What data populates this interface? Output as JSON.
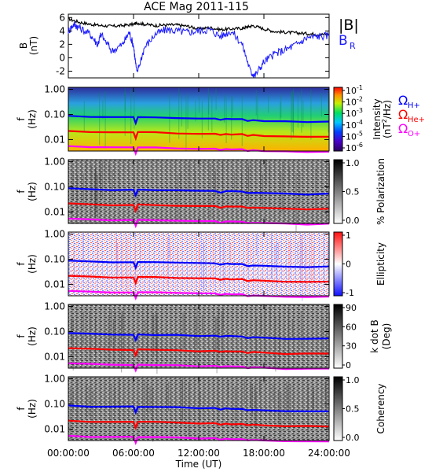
{
  "chart_data": {
    "type": "line",
    "title": "ACE Mag 2011-115",
    "xlabel": "Time (UT)",
    "x_ticks": [
      "00:00:00",
      "06:00:00",
      "12:00:00",
      "18:00:00",
      "24:00:00"
    ],
    "x_range_hours": [
      0,
      24
    ],
    "panels": [
      {
        "id": "b",
        "type": "line",
        "ylabel": "B",
        "yunit": "(nT)",
        "ylim": [
          -3,
          6.5
        ],
        "y_ticks": [
          "6",
          "4",
          "2",
          "0",
          "-2"
        ],
        "series": [
          {
            "name": "|B|",
            "color": "#000000",
            "x": [
              0,
              1,
              2,
              3,
              4,
              5,
              6,
              6.3,
              7,
              8,
              9,
              10,
              11,
              12,
              13,
              14,
              15,
              16,
              16.5,
              17,
              18,
              19,
              20,
              21,
              22,
              23,
              24
            ],
            "values": [
              5.8,
              5.3,
              5.0,
              4.8,
              4.7,
              4.8,
              5.0,
              5.2,
              5.0,
              4.8,
              4.9,
              4.9,
              4.7,
              4.3,
              4.5,
              4.2,
              4.3,
              4.4,
              4.6,
              4.8,
              4.3,
              3.9,
              3.8,
              3.7,
              3.6,
              3.5,
              3.5
            ]
          },
          {
            "name": "B_R",
            "color": "#1a1aff",
            "x": [
              0,
              0.5,
              1,
              2,
              2.7,
              3,
              4,
              5,
              5.6,
              6,
              6.3,
              7,
              8,
              9,
              10,
              11,
              12,
              13,
              14,
              15,
              16,
              16.8,
              17.2,
              18,
              19,
              20,
              21,
              22,
              23,
              24
            ],
            "values": [
              4.0,
              5.0,
              4.5,
              3.5,
              2.0,
              3.5,
              1.0,
              2.0,
              3.8,
              1.8,
              -2.3,
              1.5,
              3.5,
              4.2,
              4.0,
              3.8,
              4.0,
              4.2,
              3.2,
              4.0,
              2.0,
              -2.2,
              -2.6,
              -0.6,
              0.6,
              1.2,
              2.0,
              3.0,
              3.2,
              3.3
            ]
          }
        ],
        "legend": [
          "|B|",
          "B",
          "R"
        ]
      },
      {
        "id": "intensity",
        "type": "heatmap",
        "ylabel": "f",
        "yunit": "(Hz)",
        "y_ticks": [
          "1.00",
          "0.10",
          "0.01"
        ],
        "colorbar_title": "Intensity",
        "colorbar_unit_base": "(nT",
        "colorbar_unit_exp": "2",
        "colorbar_unit_tail": "/Hz)",
        "colorbar_ticks": [
          "10",
          "10",
          "10",
          "10",
          "10",
          "10"
        ],
        "colorbar_tick_exps": [
          "-1",
          "-2",
          "-3",
          "-4",
          "-5",
          "-6"
        ],
        "legend": [
          "Ω",
          "H+",
          "Ω",
          "He+",
          "Ω",
          "O+"
        ]
      },
      {
        "id": "polarization",
        "type": "heatmap",
        "ylabel": "f",
        "yunit": "(Hz)",
        "y_ticks": [
          "1.00",
          "0.10",
          "0.01"
        ],
        "colorbar_title": "% Polarization",
        "colorbar_ticks": [
          "1.0",
          "0.5",
          "0.0"
        ]
      },
      {
        "id": "ellipticity",
        "type": "heatmap",
        "ylabel": "f",
        "yunit": "(Hz)",
        "y_ticks": [
          "1.00",
          "0.10",
          "0.01"
        ],
        "colorbar_title": "Ellipticity",
        "colorbar_ticks": [
          "1",
          "0",
          "-1"
        ]
      },
      {
        "id": "kdotb",
        "type": "heatmap",
        "ylabel": "f",
        "yunit": "(Hz)",
        "y_ticks": [
          "1.00",
          "0.10",
          "0.01"
        ],
        "colorbar_title": "k dot B",
        "colorbar_subtitle": "(Deg)",
        "colorbar_ticks": [
          "90",
          "60",
          "30",
          "0"
        ]
      },
      {
        "id": "coherency",
        "type": "heatmap",
        "ylabel": "f",
        "yunit": "(Hz)",
        "y_ticks": [
          "1.00",
          "0.10",
          "0.01"
        ],
        "colorbar_title": "Coherency",
        "colorbar_ticks": [
          "1.0",
          "0.5",
          "0.0"
        ]
      }
    ],
    "gyrofrequency_lines": [
      {
        "name": "H+",
        "color": "#0000ff",
        "x": [
          0,
          2,
          4,
          6,
          6.2,
          6.4,
          8,
          10,
          12,
          13.5,
          14,
          14.5,
          15,
          16,
          16.5,
          17,
          18,
          20,
          22,
          24
        ],
        "values_hz": [
          0.088,
          0.08,
          0.076,
          0.077,
          0.045,
          0.078,
          0.074,
          0.074,
          0.069,
          0.068,
          0.06,
          0.069,
          0.066,
          0.063,
          0.055,
          0.058,
          0.055,
          0.052,
          0.05,
          0.052
        ]
      },
      {
        "name": "He+",
        "color": "#ff0000",
        "x": [
          0,
          2,
          4,
          6,
          6.2,
          6.4,
          8,
          10,
          12,
          13.5,
          14,
          14.5,
          15,
          16,
          16.5,
          17,
          18,
          20,
          22,
          24
        ],
        "values_hz": [
          0.022,
          0.02,
          0.019,
          0.019,
          0.011,
          0.02,
          0.019,
          0.018,
          0.017,
          0.017,
          0.015,
          0.017,
          0.016,
          0.016,
          0.014,
          0.015,
          0.014,
          0.013,
          0.013,
          0.013
        ]
      },
      {
        "name": "O+",
        "color": "#ff00ff",
        "x": [
          0,
          2,
          4,
          6,
          6.2,
          6.4,
          8,
          10,
          12,
          13.5,
          14,
          14.5,
          15,
          16,
          16.5,
          17,
          18,
          20,
          22,
          24
        ],
        "values_hz": [
          0.0055,
          0.005,
          0.0048,
          0.0048,
          0.0028,
          0.0049,
          0.0047,
          0.0046,
          0.0043,
          0.0043,
          0.0038,
          0.0043,
          0.0041,
          0.004,
          0.0035,
          0.0037,
          0.0035,
          0.0033,
          0.0032,
          0.0033
        ]
      }
    ]
  }
}
